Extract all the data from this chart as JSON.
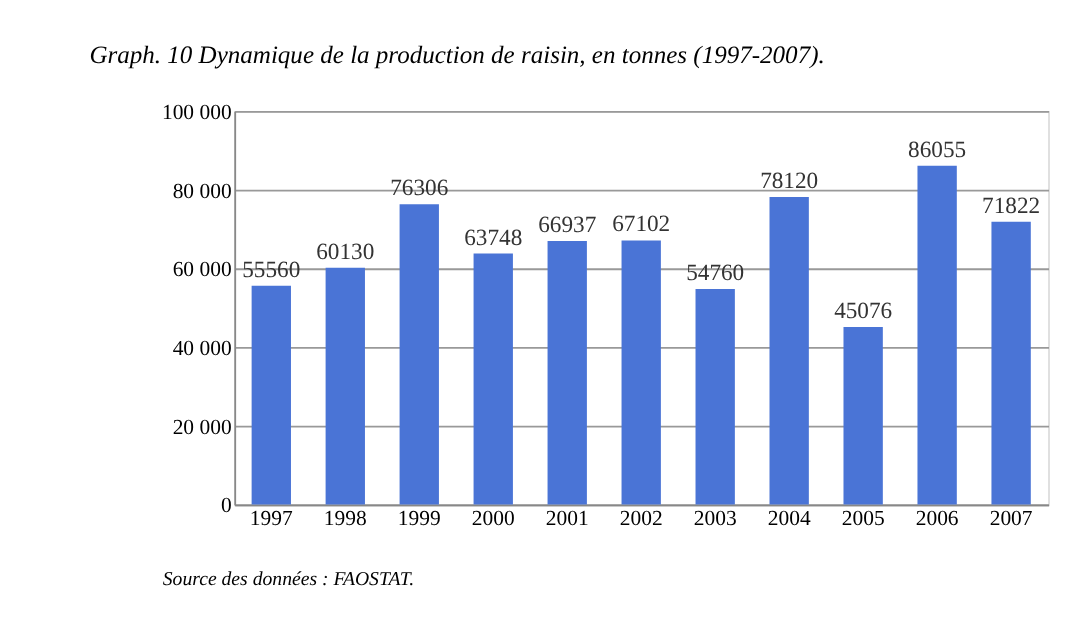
{
  "chart_data": {
    "type": "bar",
    "title": "Graph. 10 Dynamique de la production de raisin, en tonnes (1997-2007).",
    "categories": [
      "1997",
      "1998",
      "1999",
      "2000",
      "2001",
      "2002",
      "2003",
      "2004",
      "2005",
      "2006",
      "2007"
    ],
    "values": [
      55560,
      60130,
      76306,
      63748,
      66937,
      67102,
      54760,
      78120,
      45076,
      86055,
      71822
    ],
    "color": "#4a74d6",
    "ylim": [
      0,
      100000
    ],
    "yticks": [
      0,
      {
        "value": 20000,
        "label": "20 000"
      },
      {
        "value": 40000,
        "label": "40 000"
      },
      {
        "value": 60000,
        "label": "60 000"
      },
      {
        "value": 80000,
        "label": "80 000"
      },
      {
        "value": 100000,
        "label": "100 000"
      }
    ],
    "grid": "y",
    "data_labels": true,
    "annotations": [
      "Source des données : FAOSTAT."
    ]
  }
}
